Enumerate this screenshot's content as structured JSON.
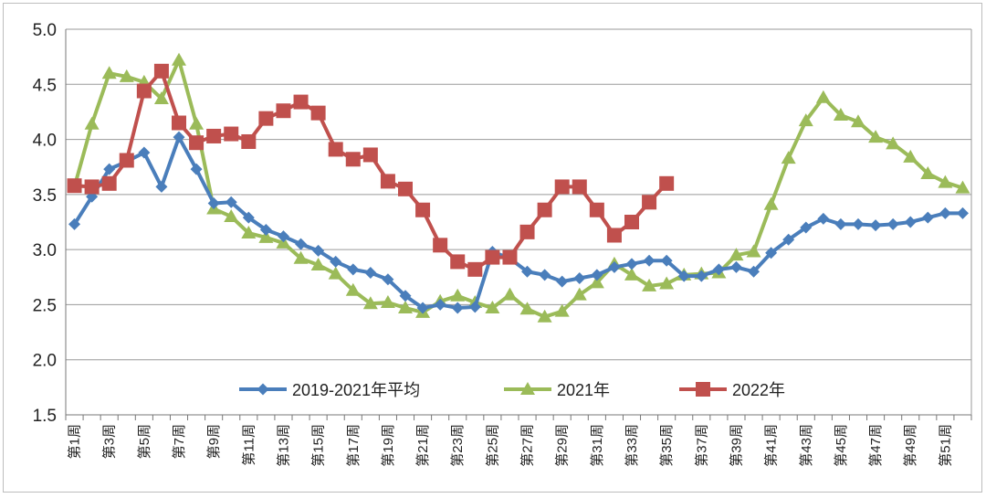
{
  "chart_data": {
    "type": "line",
    "title": "",
    "xlabel": "",
    "ylabel": "",
    "ylim": [
      1.5,
      5.0
    ],
    "yticks": [
      "1.5",
      "2.0",
      "2.5",
      "3.0",
      "3.5",
      "4.0",
      "4.5",
      "5.0"
    ],
    "grid": "horizontal",
    "legend_position": "bottom-center",
    "x": [
      "第1周",
      "第2周",
      "第3周",
      "第4周",
      "第5周",
      "第6周",
      "第7周",
      "第8周",
      "第9周",
      "第10周",
      "第11周",
      "第12周",
      "第13周",
      "第14周",
      "第15周",
      "第16周",
      "第17周",
      "第18周",
      "第19周",
      "第20周",
      "第21周",
      "第22周",
      "第23周",
      "第24周",
      "第25周",
      "第26周",
      "第27周",
      "第28周",
      "第29周",
      "第30周",
      "第31周",
      "第32周",
      "第33周",
      "第34周",
      "第35周",
      "第36周",
      "第37周",
      "第38周",
      "第39周",
      "第40周",
      "第41周",
      "第42周",
      "第43周",
      "第44周",
      "第45周",
      "第46周",
      "第47周",
      "第48周",
      "第49周",
      "第50周",
      "第51周",
      "第52周"
    ],
    "xtick_labels": [
      "第1周",
      "第3周",
      "第5周",
      "第7周",
      "第9周",
      "第11周",
      "第13周",
      "第15周",
      "第17周",
      "第19周",
      "第21周",
      "第23周",
      "第25周",
      "第27周",
      "第29周",
      "第31周",
      "第33周",
      "第35周",
      "第37周",
      "第39周",
      "第41周",
      "第43周",
      "第45周",
      "第47周",
      "第49周",
      "第51周"
    ],
    "series": [
      {
        "name": "2019-2021年平均",
        "color": "#4a7ebb",
        "marker": "diamond",
        "values": [
          3.23,
          3.48,
          3.73,
          3.8,
          3.88,
          3.57,
          4.02,
          3.73,
          3.42,
          3.43,
          3.29,
          3.18,
          3.12,
          3.05,
          2.99,
          2.89,
          2.82,
          2.79,
          2.73,
          2.58,
          2.47,
          2.5,
          2.47,
          2.48,
          2.98,
          2.92,
          2.8,
          2.77,
          2.71,
          2.74,
          2.77,
          2.84,
          2.87,
          2.9,
          2.9,
          2.76,
          2.76,
          2.82,
          2.84,
          2.8,
          2.97,
          3.09,
          3.2,
          3.28,
          3.23,
          3.23,
          3.22,
          3.23,
          3.25,
          3.29,
          3.33,
          3.33
        ]
      },
      {
        "name": "2021年",
        "color": "#9bbb59",
        "marker": "triangle",
        "values": [
          3.57,
          4.14,
          4.6,
          4.57,
          4.52,
          4.37,
          4.72,
          4.14,
          3.37,
          3.3,
          3.15,
          3.11,
          3.06,
          2.92,
          2.86,
          2.78,
          2.63,
          2.51,
          2.52,
          2.47,
          2.43,
          2.53,
          2.58,
          2.52,
          2.47,
          2.59,
          2.46,
          2.39,
          2.44,
          2.59,
          2.7,
          2.87,
          2.77,
          2.67,
          2.69,
          2.77,
          2.78,
          2.79,
          2.95,
          2.98,
          3.41,
          3.83,
          4.17,
          4.38,
          4.22,
          4.16,
          4.02,
          3.96,
          3.84,
          3.69,
          3.61,
          3.56
        ]
      },
      {
        "name": "2022年",
        "color": "#c0504d",
        "marker": "square",
        "values": [
          3.58,
          3.57,
          3.6,
          3.81,
          4.44,
          4.62,
          4.15,
          3.97,
          4.03,
          4.05,
          3.98,
          4.19,
          4.26,
          4.34,
          4.24,
          3.91,
          3.82,
          3.86,
          3.62,
          3.55,
          3.36,
          3.04,
          2.89,
          2.82,
          2.93,
          2.93,
          3.16,
          3.36,
          3.57,
          3.57,
          3.36,
          3.13,
          3.25,
          3.43,
          3.6,
          null,
          null,
          null,
          null,
          null,
          null,
          null,
          null,
          null,
          null,
          null,
          null,
          null,
          null,
          null,
          null,
          null
        ]
      }
    ]
  }
}
